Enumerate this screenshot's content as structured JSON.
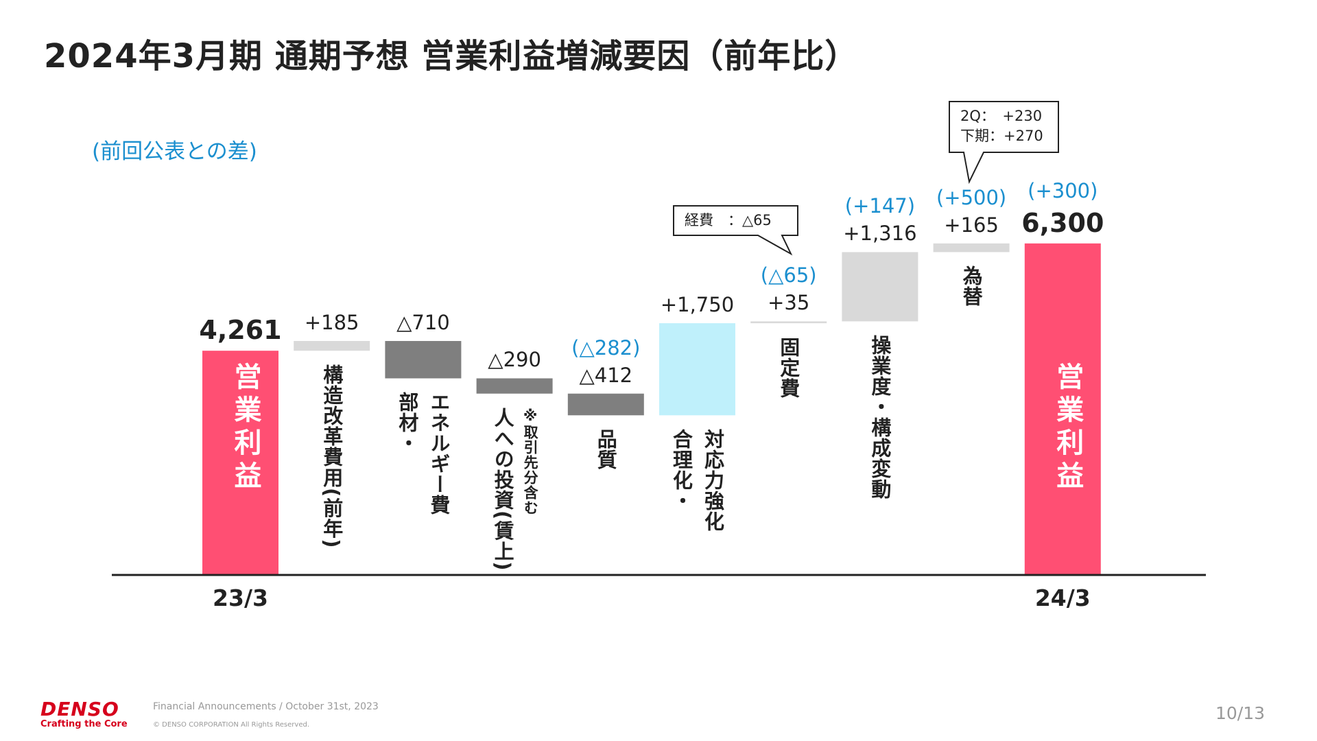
{
  "title": "2024年3月期 通期予想 営業利益増減要因（前年比）",
  "subtitle": "(前回公表との差)",
  "chart_data": {
    "type": "waterfall",
    "title": "2024年3月期 通期予想 営業利益増減要因（前年比）",
    "colors": {
      "total": "#ff4f73",
      "increase_fixed": "#d9d9d9",
      "decrease": "#7f7f7f",
      "increase_highlight": "#bff0fb",
      "diff_text": "#1b8fcf"
    },
    "bars": [
      {
        "category": [
          "営業利益"
        ],
        "type": "total",
        "value": 4261,
        "label": "4,261",
        "diff": "",
        "x_label": "23/3",
        "color": "#ff4f73"
      },
      {
        "category": [
          "構造改革費用(前年)"
        ],
        "type": "delta",
        "value": 185,
        "label": "+185",
        "diff": "",
        "color": "#d9d9d9"
      },
      {
        "category": [
          "エネルギー費",
          "部材・"
        ],
        "type": "delta",
        "value": -710,
        "label": "△710",
        "diff": "",
        "color": "#7f7f7f"
      },
      {
        "category": [
          "※取引先分含む",
          "人への投資(賃上)"
        ],
        "type": "delta",
        "value": -290,
        "label": "△290",
        "diff": "",
        "color": "#7f7f7f"
      },
      {
        "category": [
          "品質"
        ],
        "type": "delta",
        "value": -412,
        "label": "△412",
        "diff": "(△282)",
        "color": "#7f7f7f"
      },
      {
        "category": [
          "対応力強化",
          "合理化・"
        ],
        "type": "delta",
        "value": 1750,
        "label": "+1,750",
        "diff": "",
        "color": "#bff0fb"
      },
      {
        "category": [
          "固定費"
        ],
        "type": "delta",
        "value": 35,
        "label": "+35",
        "diff": "(△65)",
        "color": "#d9d9d9"
      },
      {
        "category": [
          "操業度・構成変動"
        ],
        "type": "delta",
        "value": 1316,
        "label": "+1,316",
        "diff": "(+147)",
        "color": "#d9d9d9"
      },
      {
        "category": [
          "為替"
        ],
        "type": "delta",
        "value": 165,
        "label": "+165",
        "diff": "(+500)",
        "color": "#d9d9d9"
      },
      {
        "category": [
          "営業利益"
        ],
        "type": "total",
        "value": 6300,
        "label": "6,300",
        "diff": "(+300)",
        "x_label": "24/3",
        "color": "#ff4f73"
      }
    ],
    "callouts": [
      {
        "lines": [
          "経費　：△65"
        ],
        "target": "固定費"
      },
      {
        "lines": [
          "2Q：　+230",
          "下期：+270"
        ],
        "target": "為替"
      }
    ]
  },
  "footer": {
    "logo": "DENSO",
    "tagline": "Crafting the Core",
    "source": "Financial Announcements / October 31st, 2023",
    "copyright": "© DENSO CORPORATION All Rights Reserved.",
    "page": "10/13"
  }
}
